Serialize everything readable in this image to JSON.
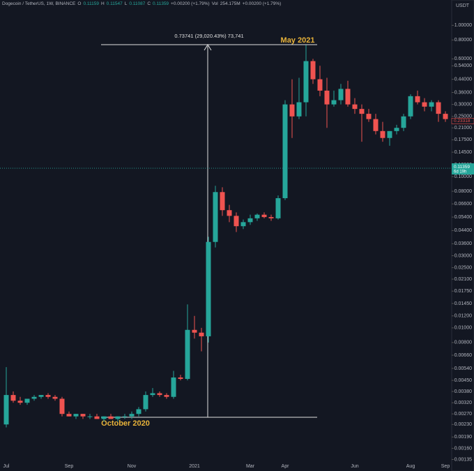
{
  "chart_data": {
    "type": "candlestick",
    "title": "Dogecoin / TetherUS, 1W, BINANCE",
    "legend_items": [
      "O",
      "0.11159",
      "H",
      "0.11547",
      "L",
      "0.11087",
      "C",
      "0.11359",
      "+0.00200 (+1.79%)",
      "Vol",
      "254.175M",
      "+0.00200 (+1.79%)"
    ],
    "currency": "USDT",
    "annotation": "0.73741 (29,020.43%) 73,741",
    "peak_label": "May 2021",
    "bottom_label": "October 2020",
    "last_price": 0.11359,
    "countdown": "6d 19h",
    "marked_price": 0.23318,
    "up_color": "#26a69a",
    "down_color": "#ef5350",
    "log_scale": true,
    "grid": false,
    "ylim": [
      0.0013,
      1.47
    ],
    "yticks": [
      {
        "value": 1,
        "label": "1.00000"
      },
      {
        "value": 0.8,
        "label": "0.80000"
      },
      {
        "value": 0.6,
        "label": "0.60000"
      },
      {
        "value": 0.54,
        "label": "0.54000"
      },
      {
        "value": 0.44,
        "label": "0.44000"
      },
      {
        "value": 0.36,
        "label": "0.36000"
      },
      {
        "value": 0.3,
        "label": "0.30000"
      },
      {
        "value": 0.25,
        "label": "0.25000"
      },
      {
        "value": 0.21,
        "label": "0.21000"
      },
      {
        "value": 0.175,
        "label": "0.17500"
      },
      {
        "value": 0.145,
        "label": "0.14500"
      },
      {
        "value": 0.12,
        "label": "0.12000"
      },
      {
        "value": 0.1,
        "label": "0.10000"
      },
      {
        "value": 0.08,
        "label": "0.08000"
      },
      {
        "value": 0.066,
        "label": "0.06600"
      },
      {
        "value": 0.054,
        "label": "0.05400"
      },
      {
        "value": 0.044,
        "label": "0.04400"
      },
      {
        "value": 0.036,
        "label": "0.03600"
      },
      {
        "value": 0.03,
        "label": "0.03000"
      },
      {
        "value": 0.025,
        "label": "0.02500"
      },
      {
        "value": 0.021,
        "label": "0.02100"
      },
      {
        "value": 0.0175,
        "label": "0.01750"
      },
      {
        "value": 0.0145,
        "label": "0.01450"
      },
      {
        "value": 0.012,
        "label": "0.01200"
      },
      {
        "value": 0.01,
        "label": "0.01000"
      },
      {
        "value": 0.008,
        "label": "0.00800"
      },
      {
        "value": 0.0066,
        "label": "0.00660"
      },
      {
        "value": 0.0054,
        "label": "0.00540"
      },
      {
        "value": 0.0045,
        "label": "0.00450"
      },
      {
        "value": 0.0038,
        "label": "0.00380"
      },
      {
        "value": 0.0032,
        "label": "0.00320"
      },
      {
        "value": 0.0027,
        "label": "0.00270"
      },
      {
        "value": 0.0023,
        "label": "0.00230"
      },
      {
        "value": 0.0019,
        "label": "0.00190"
      },
      {
        "value": 0.0016,
        "label": "0.00160"
      },
      {
        "value": 0.00135,
        "label": "0.00135"
      }
    ],
    "categories": [
      "Jul",
      null,
      null,
      null,
      null,
      null,
      null,
      null,
      null,
      "Sep",
      null,
      null,
      null,
      null,
      null,
      null,
      null,
      null,
      "Nov",
      null,
      null,
      null,
      null,
      null,
      null,
      null,
      null,
      "2021",
      null,
      null,
      null,
      null,
      null,
      null,
      null,
      "Mar",
      null,
      null,
      null,
      null,
      "Apr",
      null,
      null,
      null,
      null,
      null,
      null,
      null,
      null,
      null,
      "Jun",
      null,
      null,
      null,
      null,
      null,
      null,
      null,
      "Aug",
      null,
      null,
      null,
      null,
      "Sep"
    ],
    "open": [
      0.0023,
      0.0036,
      0.0033,
      0.0032,
      0.0034,
      0.0035,
      0.0036,
      0.0035,
      0.0034,
      0.0027,
      0.0026,
      0.0027,
      0.0026,
      0.0026,
      0.0025,
      0.0026,
      0.0025,
      0.0026,
      0.0026,
      0.0027,
      0.0029,
      0.0036,
      0.0037,
      0.0036,
      0.0035,
      0.0047,
      0.0046,
      0.0097,
      0.0093,
      0.0088,
      0.037,
      0.079,
      0.06,
      0.055,
      0.047,
      0.05,
      0.053,
      0.056,
      0.054,
      0.053,
      0.072,
      0.3,
      0.25,
      0.31,
      0.58,
      0.44,
      0.37,
      0.3,
      0.32,
      0.38,
      0.3,
      0.28,
      0.26,
      0.24,
      0.2,
      0.18,
      0.2,
      0.21,
      0.25,
      0.34,
      0.31,
      0.29,
      0.31,
      0.26
    ],
    "high": [
      0.0055,
      0.0038,
      0.0035,
      0.0034,
      0.0036,
      0.0036,
      0.0037,
      0.0036,
      0.0035,
      0.0028,
      0.0027,
      0.0027,
      0.0027,
      0.0027,
      0.0026,
      0.0027,
      0.0026,
      0.0027,
      0.0028,
      0.003,
      0.0038,
      0.004,
      0.0038,
      0.0037,
      0.0052,
      0.0049,
      0.0143,
      0.012,
      0.01,
      0.04,
      0.087,
      0.085,
      0.065,
      0.058,
      0.052,
      0.056,
      0.057,
      0.058,
      0.056,
      0.075,
      0.32,
      0.44,
      0.45,
      0.74,
      0.6,
      0.54,
      0.45,
      0.37,
      0.41,
      0.43,
      0.33,
      0.3,
      0.28,
      0.26,
      0.23,
      0.2,
      0.22,
      0.26,
      0.35,
      0.37,
      0.33,
      0.32,
      0.32,
      0.27
    ],
    "low": [
      0.0022,
      0.0032,
      0.0031,
      0.0031,
      0.0033,
      0.0034,
      0.0034,
      0.0033,
      0.0026,
      0.0026,
      0.0025,
      0.0025,
      0.0025,
      0.0025,
      0.0024,
      0.0025,
      0.0024,
      0.0025,
      0.0025,
      0.0026,
      0.0028,
      0.0035,
      0.0035,
      0.0034,
      0.0034,
      0.0045,
      0.0045,
      0.0085,
      0.007,
      0.008,
      0.034,
      0.055,
      0.05,
      0.043,
      0.045,
      0.048,
      0.051,
      0.053,
      0.051,
      0.052,
      0.07,
      0.18,
      0.24,
      0.25,
      0.41,
      0.34,
      0.21,
      0.29,
      0.3,
      0.29,
      0.26,
      0.17,
      0.23,
      0.19,
      0.17,
      0.16,
      0.19,
      0.2,
      0.24,
      0.3,
      0.27,
      0.27,
      0.23,
      0.23
    ],
    "close": [
      0.0036,
      0.0033,
      0.0032,
      0.0034,
      0.0035,
      0.0036,
      0.0035,
      0.0034,
      0.0027,
      0.0026,
      0.0027,
      0.0026,
      0.0026,
      0.0025,
      0.0026,
      0.0025,
      0.0026,
      0.0026,
      0.0027,
      0.0029,
      0.0036,
      0.0037,
      0.0036,
      0.0035,
      0.0047,
      0.0046,
      0.0097,
      0.0093,
      0.0088,
      0.037,
      0.079,
      0.06,
      0.055,
      0.047,
      0.05,
      0.053,
      0.056,
      0.054,
      0.053,
      0.072,
      0.3,
      0.25,
      0.31,
      0.58,
      0.44,
      0.37,
      0.3,
      0.32,
      0.38,
      0.3,
      0.28,
      0.26,
      0.24,
      0.2,
      0.18,
      0.2,
      0.21,
      0.25,
      0.34,
      0.31,
      0.29,
      0.31,
      0.26,
      0.24
    ]
  }
}
